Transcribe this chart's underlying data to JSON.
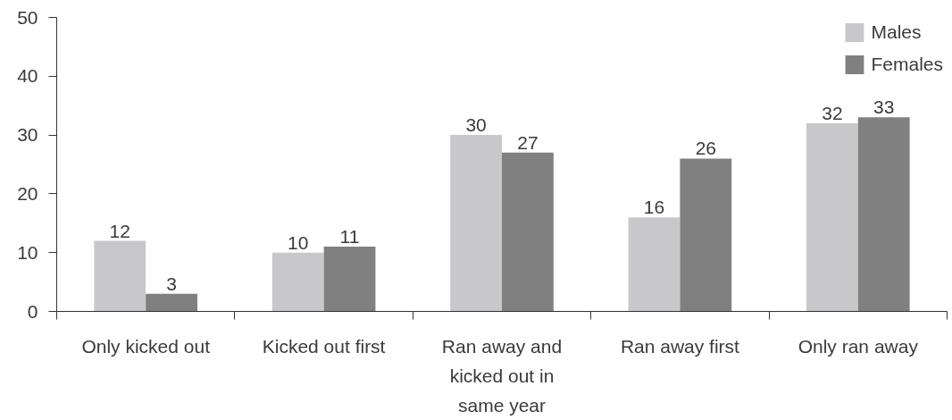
{
  "chart_data": {
    "type": "bar",
    "categories": [
      "Only kicked out",
      "Kicked out first",
      "Ran away and kicked out in same year",
      "Ran away first",
      "Only ran away"
    ],
    "series": [
      {
        "name": "Males",
        "color": "#c8c8ca",
        "values": [
          12,
          10,
          30,
          16,
          32
        ]
      },
      {
        "name": "Females",
        "color": "#808080",
        "values": [
          3,
          11,
          27,
          26,
          33
        ]
      }
    ],
    "ylim": [
      0,
      50
    ],
    "yticks": [
      0,
      10,
      20,
      30,
      40,
      50
    ],
    "grid": false,
    "legend": "top right",
    "data_labels": true
  }
}
